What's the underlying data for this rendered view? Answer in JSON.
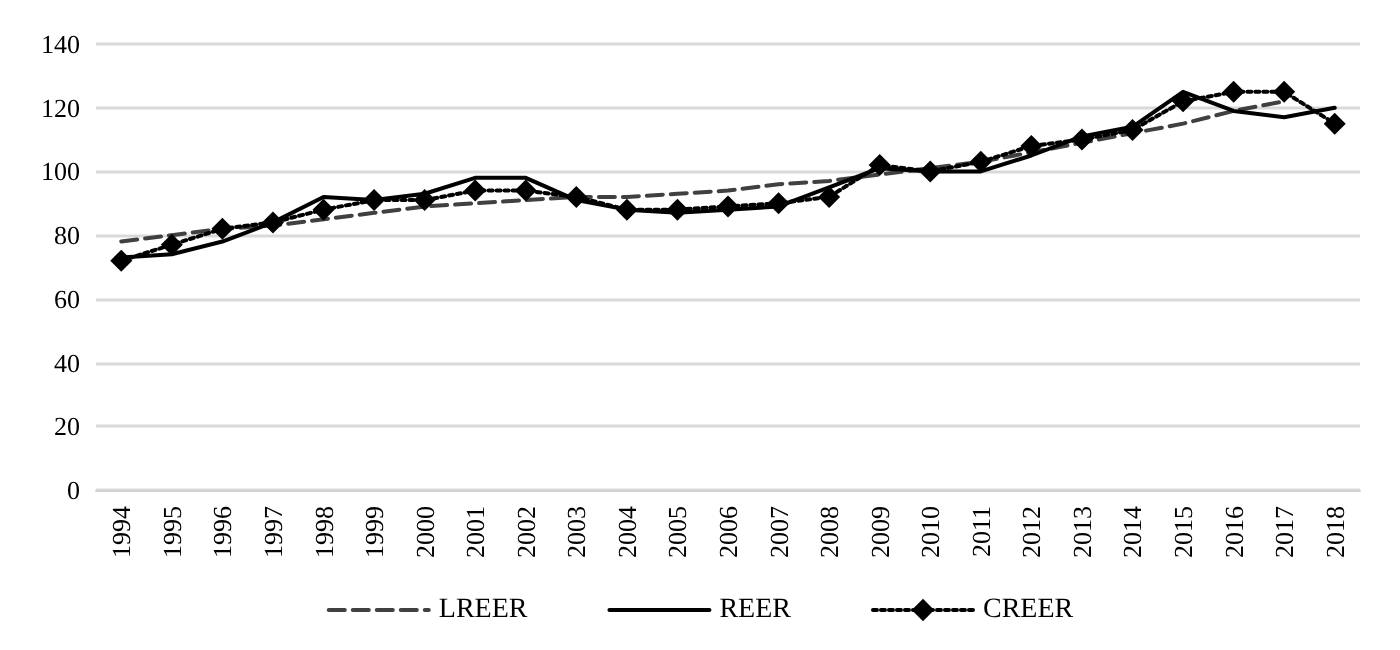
{
  "chart_data": {
    "type": "line",
    "categories": [
      "1994",
      "1995",
      "1996",
      "1997",
      "1998",
      "1999",
      "2000",
      "2001",
      "2002",
      "2003",
      "2004",
      "2005",
      "2006",
      "2007",
      "2008",
      "2009",
      "2010",
      "2011",
      "2012",
      "2013",
      "2014",
      "2015",
      "2016",
      "2017",
      "2018"
    ],
    "series": [
      {
        "name": "LREER",
        "color": "#404040",
        "line_style": "dashed",
        "marker": "none",
        "values": [
          78,
          80,
          82,
          83,
          85,
          87,
          89,
          90,
          91,
          92,
          92,
          93,
          94,
          96,
          97,
          99,
          101,
          103,
          106,
          109,
          112,
          115,
          119,
          122,
          null
        ]
      },
      {
        "name": "REER",
        "color": "#000000",
        "line_style": "solid",
        "marker": "none",
        "values": [
          73,
          74,
          78,
          84,
          92,
          91,
          93,
          98,
          98,
          91,
          88,
          87,
          88,
          89,
          95,
          101,
          100,
          100,
          105,
          111,
          114,
          125,
          119,
          117,
          120
        ]
      },
      {
        "name": "CREER",
        "color": "#000000",
        "line_style": "dotted",
        "marker": "diamond",
        "values": [
          72,
          77,
          82,
          84,
          88,
          91,
          91,
          94,
          94,
          92,
          88,
          88,
          89,
          90,
          92,
          102,
          100,
          103,
          108,
          110,
          113,
          122,
          125,
          125,
          115
        ]
      }
    ],
    "ylim": [
      0,
      140
    ],
    "yticks": [
      0,
      20,
      40,
      60,
      80,
      100,
      120,
      140
    ],
    "grid": "y",
    "legend": "bottom"
  }
}
